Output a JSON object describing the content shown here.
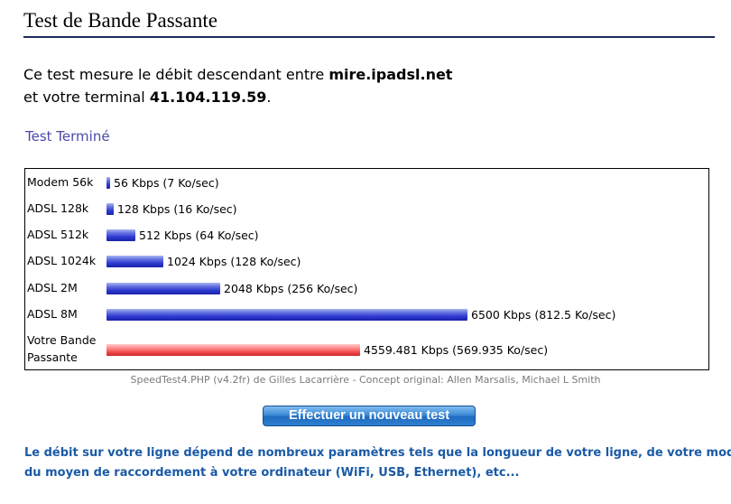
{
  "header": {
    "title": "Test de Bande Passante"
  },
  "intro": {
    "line1_prefix": "Ce test mesure le débit descendant entre ",
    "server": "mire.ipadsl.net",
    "line2_prefix": "et votre terminal ",
    "ip": "41.104.119.59",
    "line2_suffix": "."
  },
  "status": {
    "text": "Test Terminé"
  },
  "results": {
    "max_kbps": 6500,
    "rows": [
      {
        "label": "Modem 56k",
        "kbps": 56,
        "speed_text": "56 Kbps (7 Ko/sec)",
        "color": "blue"
      },
      {
        "label": "ADSL 128k",
        "kbps": 128,
        "speed_text": "128 Kbps (16 Ko/sec)",
        "color": "blue"
      },
      {
        "label": "ADSL 512k",
        "kbps": 512,
        "speed_text": "512 Kbps (64 Ko/sec)",
        "color": "blue"
      },
      {
        "label": "ADSL 1024k",
        "kbps": 1024,
        "speed_text": "1024 Kbps (128 Ko/sec)",
        "color": "blue"
      },
      {
        "label": "ADSL 2M",
        "kbps": 2048,
        "speed_text": "2048 Kbps (256 Ko/sec)",
        "color": "blue"
      },
      {
        "label": "ADSL 8M",
        "kbps": 6500,
        "speed_text": "6500 Kbps (812.5 Ko/sec)",
        "color": "blue"
      },
      {
        "label_line1": "Votre Bande",
        "label_line2": "Passante",
        "kbps": 4559.481,
        "speed_text": "4559.481 Kbps (569.935 Ko/sec)",
        "color": "red"
      }
    ]
  },
  "credit": {
    "text": "SpeedTest4.PHP (v4.2fr) de Gilles Lacarrière - Concept original: Allen Marsalis, Michael L Smith"
  },
  "actions": {
    "new_test_label": "Effectuer un nouveau test"
  },
  "footer": {
    "line1": "Le débit sur votre ligne dépend de nombreux paramètres tels que la longueur de votre ligne, de votre modem,",
    "line2": "du moyen de raccordement à votre ordinateur (WiFi, USB, Ethernet), etc..."
  },
  "colors": {
    "title_rule": "#1f2a5c",
    "status_text": "#4a4aa8",
    "footer_text": "#1a5aa6",
    "bar_blue": "#2c3ad0",
    "bar_red": "#f04848",
    "button": "#2f7fcf"
  }
}
